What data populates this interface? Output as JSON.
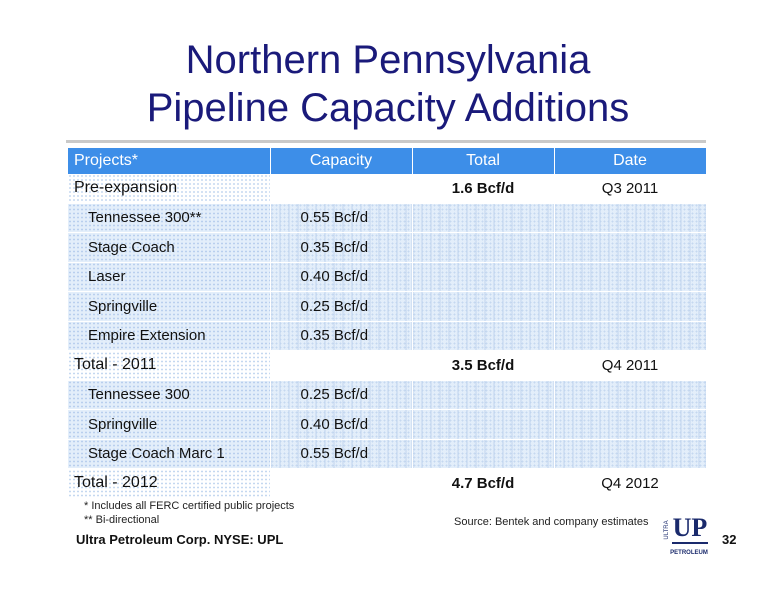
{
  "title_line1": "Northern Pennsylvania",
  "title_line2": "Pipeline Capacity Additions",
  "table": {
    "headers": [
      "Projects*",
      "Capacity",
      "Total",
      "Date"
    ],
    "rows": [
      {
        "project": "Pre-expansion",
        "capacity": "",
        "total": "1.6 Bcf/d",
        "date": "Q3 2011",
        "major": true
      },
      {
        "project": "Tennessee 300**",
        "capacity": "0.55 Bcf/d",
        "total": "",
        "date": "",
        "major": false
      },
      {
        "project": "Stage Coach",
        "capacity": "0.35 Bcf/d",
        "total": "",
        "date": "",
        "major": false
      },
      {
        "project": "Laser",
        "capacity": "0.40 Bcf/d",
        "total": "",
        "date": "",
        "major": false
      },
      {
        "project": "Springville",
        "capacity": "0.25 Bcf/d",
        "total": "",
        "date": "",
        "major": false
      },
      {
        "project": "Empire Extension",
        "capacity": "0.35 Bcf/d",
        "total": "",
        "date": "",
        "major": false
      },
      {
        "project": "Total - 2011",
        "capacity": "",
        "total": "3.5 Bcf/d",
        "date": "Q4 2011",
        "major": true
      },
      {
        "project": "Tennessee 300",
        "capacity": "0.25 Bcf/d",
        "total": "",
        "date": "",
        "major": false
      },
      {
        "project": "Springville",
        "capacity": "0.40 Bcf/d",
        "total": "",
        "date": "",
        "major": false
      },
      {
        "project": "Stage Coach Marc 1",
        "capacity": "0.55 Bcf/d",
        "total": "",
        "date": "",
        "major": false
      },
      {
        "project": "Total - 2012",
        "capacity": "",
        "total": "4.7 Bcf/d",
        "date": "Q4 2012",
        "major": true
      }
    ]
  },
  "footnote1": "* Includes all FERC certified public projects",
  "footnote2": "** Bi-directional",
  "source": "Source: Bentek and company estimates",
  "company": "Ultra Petroleum Corp. NYSE: UPL",
  "page_number": "32",
  "logo": {
    "top_text": "ULTRA",
    "mark": "UP",
    "bottom_text": "PETROLEUM",
    "color": "#1a2a6c"
  }
}
